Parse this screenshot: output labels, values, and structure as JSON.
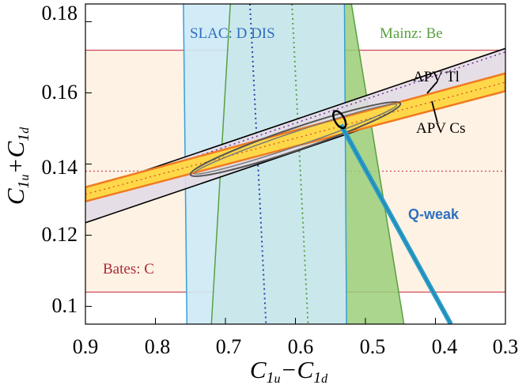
{
  "chart_data": {
    "type": "area",
    "xlim": [
      0.9,
      0.3
    ],
    "ylim": [
      0.095,
      0.185
    ],
    "x_reversed": true,
    "xticks": [
      "0.9",
      "0.8",
      "0.7",
      "0.6",
      "0.5",
      "0.4",
      "0.3"
    ],
    "yticks": [
      "0.1",
      "0.12",
      "0.14",
      "0.16",
      "0.18"
    ],
    "xtick_values": [
      0.9,
      0.8,
      0.7,
      0.6,
      0.5,
      0.4,
      0.3
    ],
    "ytick_values": [
      0.1,
      0.12,
      0.14,
      0.16,
      0.18
    ],
    "grid": false,
    "bates_band": {
      "label": "Bates: C",
      "ymin": 0.104,
      "ymax": 0.172,
      "ycenter": 0.138,
      "color": "#fdf2e3",
      "line_color": "#d04a5a"
    },
    "slac_band": {
      "label": "SLAC: D DIS",
      "top": [
        [
          0.76,
          0.185
        ],
        [
          0.53,
          0.185
        ]
      ],
      "bottom": [
        [
          0.755,
          0.095
        ],
        [
          0.527,
          0.095
        ]
      ],
      "center": [
        [
          0.665,
          0.185
        ],
        [
          0.642,
          0.095
        ]
      ],
      "color": "#cdeaf6",
      "line_color": "#3a9ed8"
    },
    "mainz_band": {
      "label": "Mainz: Be",
      "top": [
        [
          0.693,
          0.185
        ],
        [
          0.52,
          0.185
        ]
      ],
      "bottom": [
        [
          0.72,
          0.095
        ],
        [
          0.445,
          0.095
        ]
      ],
      "center": [
        [
          0.605,
          0.185
        ],
        [
          0.582,
          0.095
        ]
      ],
      "color": "#9bcf7a",
      "line_color": "#5aa040"
    },
    "apv_tl": {
      "label": "APV Tl",
      "left": [
        0.9,
        0.1235,
        0.1325
      ],
      "right": [
        0.3,
        0.1635,
        0.1725
      ],
      "color": "#e3dce5"
    },
    "apv_cs": {
      "label": "APV Cs",
      "left": [
        0.9,
        0.1295,
        0.1335
      ],
      "right": [
        0.3,
        0.1605,
        0.1655
      ],
      "color": "#ffd84a",
      "edge_color": "#f07a20"
    },
    "global_ellipse": {
      "center": [
        0.6,
        0.147
      ],
      "x_half": 0.15,
      "y_half": 0.01
    },
    "small_ellipse": {
      "center": [
        0.537,
        0.1525
      ],
      "label": ""
    },
    "qweak": {
      "label": "Q-weak",
      "from": [
        0.535,
        0.151
      ],
      "to": [
        0.378,
        0.095
      ],
      "color": "#2a9ec8",
      "label_color": "#2f6fc0"
    }
  }
}
